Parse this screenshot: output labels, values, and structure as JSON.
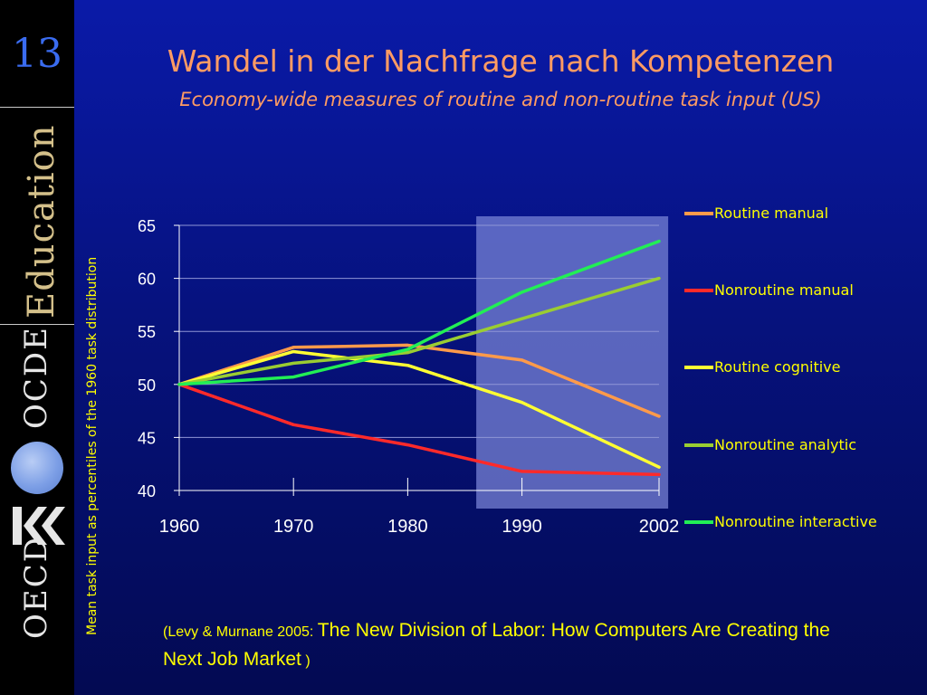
{
  "slide_number": "13",
  "sidebar": {
    "education": "Education",
    "ocde": "OCDE",
    "oecd": "OECD"
  },
  "title": "Wandel in der Nachfrage nach Kompetenzen",
  "subtitle": "Economy-wide measures of routine and non-routine task input (US)",
  "citation": {
    "open": "(Levy & Murnane 2005: ",
    "work": "The New Division of Labor: How Computers Are Creating the Next Job Market",
    "close": " )"
  },
  "chart_data": {
    "type": "line",
    "ylabel": "Mean task input as percentiles of  the 1960 task distribution",
    "x": [
      1960,
      1970,
      1980,
      1990,
      2002
    ],
    "x_tick_labels": [
      "1960",
      "1970",
      "1980",
      "1990",
      "2002"
    ],
    "y_ticks": [
      40,
      45,
      50,
      55,
      60,
      65
    ],
    "ylim": [
      40,
      65
    ],
    "grid": true,
    "legend_position": "right",
    "highlight_region": [
      1986,
      2002.8
    ],
    "series": [
      {
        "name": "Routine manual",
        "color": "#ff9a4a",
        "values": [
          50.0,
          53.5,
          53.7,
          52.3,
          47.0
        ]
      },
      {
        "name": "Nonroutine manual",
        "color": "#ff2a2a",
        "values": [
          50.0,
          46.2,
          44.3,
          41.8,
          41.5
        ]
      },
      {
        "name": "Routine cognitive",
        "color": "#ffff33",
        "values": [
          50.0,
          53.1,
          51.8,
          48.3,
          42.2
        ]
      },
      {
        "name": "Nonroutine analytic",
        "color": "#9acd32",
        "values": [
          50.0,
          52.0,
          53.0,
          56.2,
          60.0
        ]
      },
      {
        "name": "Nonroutine interactive",
        "color": "#22ee55",
        "values": [
          50.0,
          50.7,
          53.3,
          58.7,
          63.5
        ]
      }
    ]
  }
}
